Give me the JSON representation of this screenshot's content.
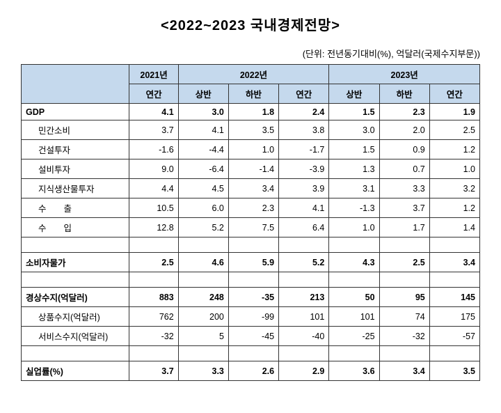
{
  "title": "<2022~2023 국내경제전망>",
  "unit_note": "(단위: 전년동기대비(%), 억달러(국제수지부문))",
  "header": {
    "y2021": "2021년",
    "y2022": "2022년",
    "y2023": "2023년",
    "annual": "연간",
    "h1": "상반",
    "h2": "하반"
  },
  "rows": [
    {
      "label": "GDP",
      "indent": false,
      "bold": true,
      "vals": [
        "4.1",
        "3.0",
        "1.8",
        "2.4",
        "1.5",
        "2.3",
        "1.9"
      ]
    },
    {
      "label": "민간소비",
      "indent": true,
      "bold": false,
      "vals": [
        "3.7",
        "4.1",
        "3.5",
        "3.8",
        "3.0",
        "2.0",
        "2.5"
      ]
    },
    {
      "label": "건설투자",
      "indent": true,
      "bold": false,
      "vals": [
        "-1.6",
        "-4.4",
        "1.0",
        "-1.7",
        "1.5",
        "0.9",
        "1.2"
      ]
    },
    {
      "label": "설비투자",
      "indent": true,
      "bold": false,
      "vals": [
        "9.0",
        "-6.4",
        "-1.4",
        "-3.9",
        "1.3",
        "0.7",
        "1.0"
      ]
    },
    {
      "label": "지식생산물투자",
      "indent": true,
      "bold": false,
      "vals": [
        "4.4",
        "4.5",
        "3.4",
        "3.9",
        "3.1",
        "3.3",
        "3.2"
      ]
    },
    {
      "label": "수　　출",
      "indent": true,
      "bold": false,
      "vals": [
        "10.5",
        "6.0",
        "2.3",
        "4.1",
        "-1.3",
        "3.7",
        "1.2"
      ]
    },
    {
      "label": "수　　입",
      "indent": true,
      "bold": false,
      "vals": [
        "12.8",
        "5.2",
        "7.5",
        "6.4",
        "1.0",
        "1.7",
        "1.4"
      ]
    },
    {
      "empty": true
    },
    {
      "label": "소비자물가",
      "indent": false,
      "bold": true,
      "vals": [
        "2.5",
        "4.6",
        "5.9",
        "5.2",
        "4.3",
        "2.5",
        "3.4"
      ]
    },
    {
      "empty": true
    },
    {
      "label": "경상수지(억달러)",
      "indent": false,
      "bold": true,
      "vals": [
        "883",
        "248",
        "-35",
        "213",
        "50",
        "95",
        "145"
      ]
    },
    {
      "label": "상품수지(억달러)",
      "indent": true,
      "bold": false,
      "vals": [
        "762",
        "200",
        "-99",
        "101",
        "101",
        "74",
        "175"
      ]
    },
    {
      "label": "서비스수지(억달러)",
      "indent": true,
      "bold": false,
      "vals": [
        "-32",
        "5",
        "-45",
        "-40",
        "-25",
        "-32",
        "-57"
      ]
    },
    {
      "empty": true
    },
    {
      "label": "실업률(%)",
      "indent": false,
      "bold": true,
      "vals": [
        "3.7",
        "3.3",
        "2.6",
        "2.9",
        "3.6",
        "3.4",
        "3.5"
      ]
    }
  ]
}
